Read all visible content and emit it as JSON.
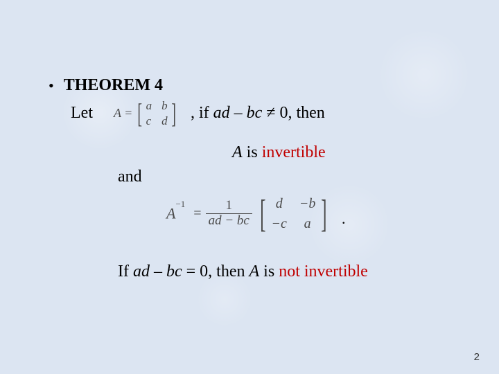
{
  "colors": {
    "background": "#dce5f2",
    "text": "#000000",
    "math_text": "#4a4a4a",
    "emphasis": "#c00000"
  },
  "theorem": {
    "title": "THEOREM 4",
    "let_word": "Let",
    "matrix_label": "A =",
    "matrix_small": {
      "r1c1": "a",
      "r1c2": "b",
      "r2c1": "c",
      "r2c2": "d"
    },
    "condition_prefix": ",   if ",
    "condition_expr": "ad – bc",
    "condition_suffix": " ≠ 0, then",
    "invertible_prefix_A": "A",
    "invertible_rest": " is ",
    "invertible_word": "invertible",
    "and_word": "and",
    "formula": {
      "lhs_A": "A",
      "lhs_exp": "−1",
      "equals": "=",
      "frac_num": "1",
      "frac_den": "ad − bc",
      "matrix_big": {
        "r1c1": "d",
        "r1c2": "−b",
        "r2c1": "−c",
        "r2c2": "a"
      },
      "trailing_dot": "."
    },
    "final": {
      "prefix": "If ",
      "expr": "ad – bc",
      "mid": " = 0, then ",
      "A": "A",
      "rest": " is ",
      "not_invertible": "not invertible"
    }
  },
  "page_number": "2"
}
